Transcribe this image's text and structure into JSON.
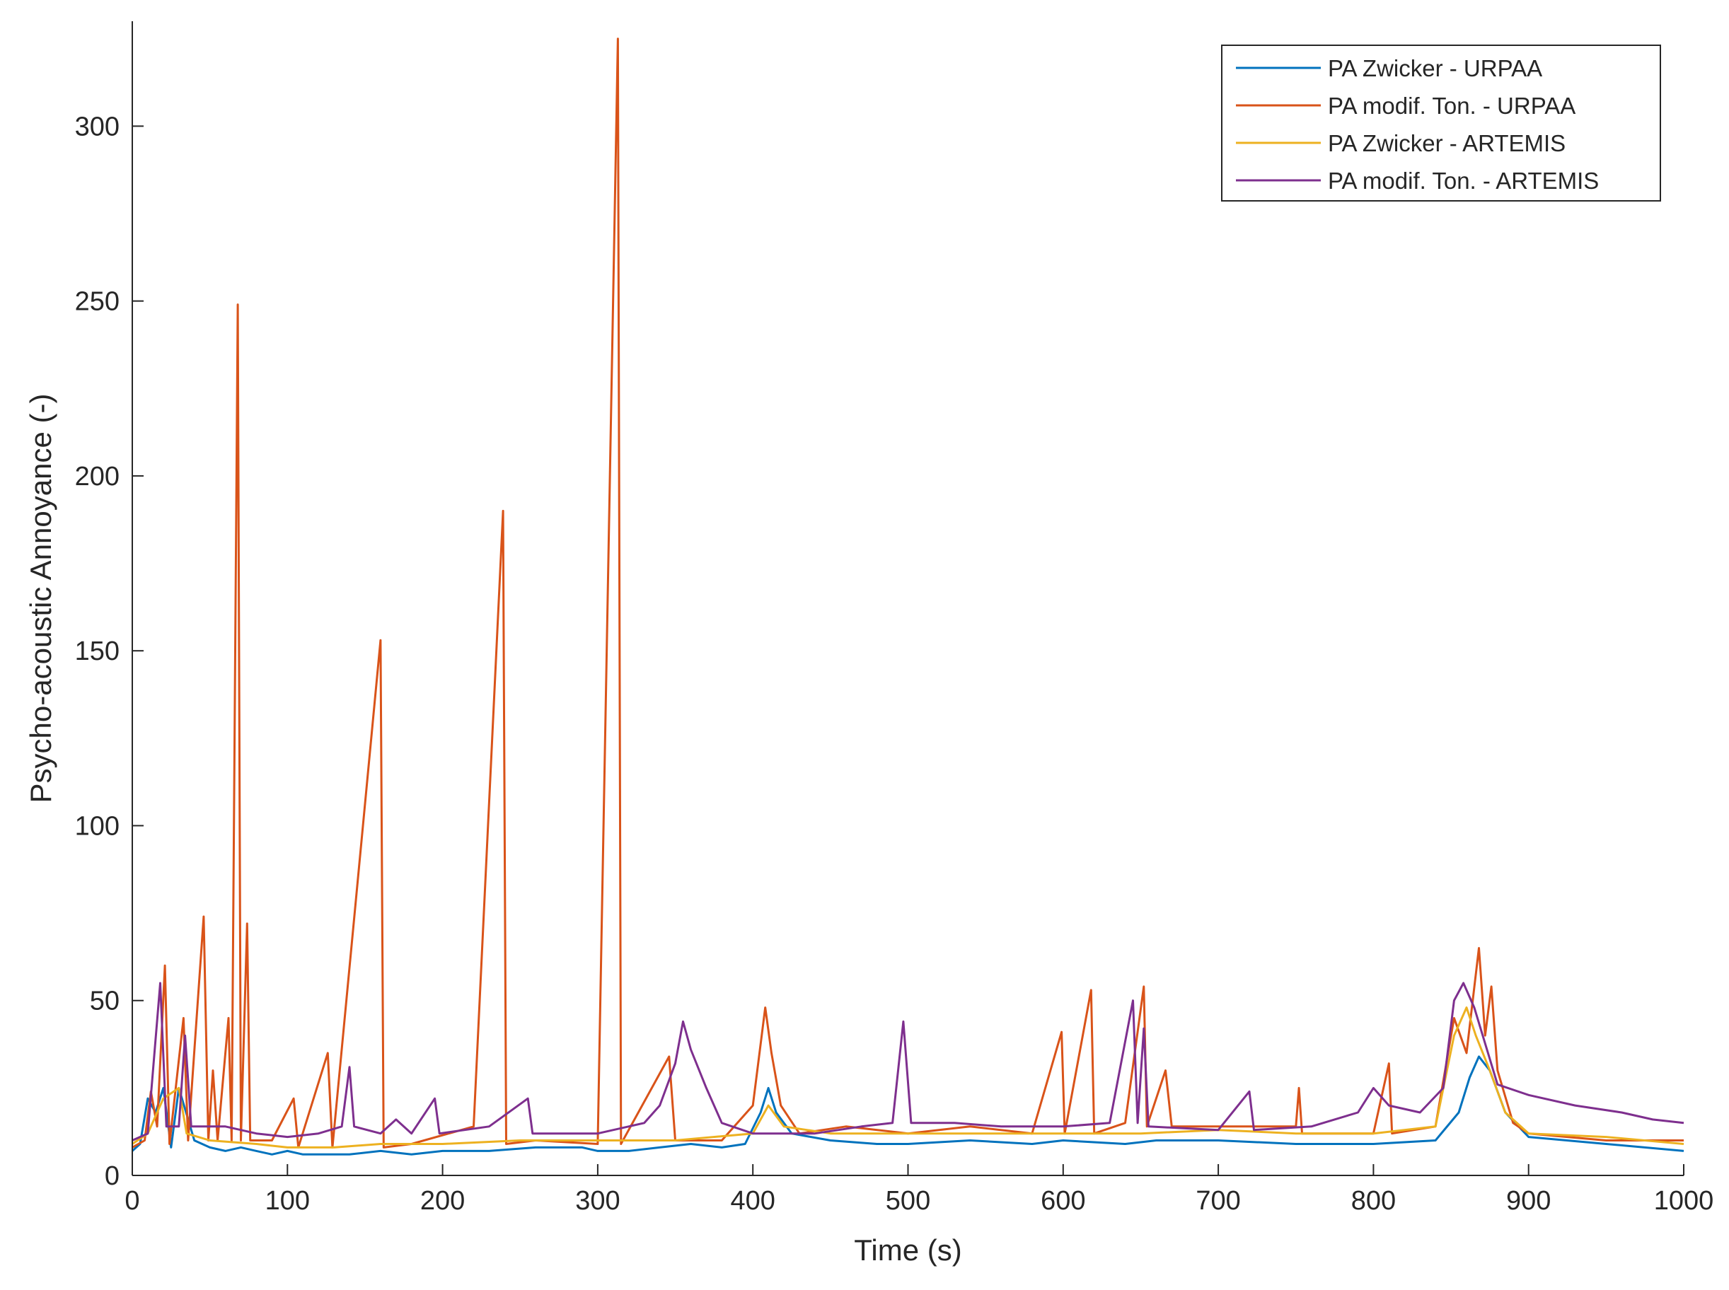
{
  "chart_data": {
    "type": "line",
    "title": "",
    "xlabel": "Time (s)",
    "ylabel": "Psycho-acoustic Annoyance (-)",
    "xlim": [
      0,
      1000
    ],
    "ylim": [
      0,
      330
    ],
    "xticks": [
      0,
      100,
      200,
      300,
      400,
      500,
      600,
      700,
      800,
      900,
      1000
    ],
    "yticks": [
      0,
      50,
      100,
      150,
      200,
      250,
      300
    ],
    "grid": false,
    "legend_position": "top-right",
    "series": [
      {
        "name": "PA Zwicker - URPAA",
        "color": "#0072BD",
        "points": [
          [
            0,
            7
          ],
          [
            5,
            9
          ],
          [
            10,
            22
          ],
          [
            15,
            18
          ],
          [
            20,
            25
          ],
          [
            25,
            8
          ],
          [
            30,
            25
          ],
          [
            40,
            10
          ],
          [
            50,
            8
          ],
          [
            60,
            7
          ],
          [
            70,
            8
          ],
          [
            80,
            7
          ],
          [
            90,
            6
          ],
          [
            100,
            7
          ],
          [
            110,
            6
          ],
          [
            125,
            6
          ],
          [
            140,
            6
          ],
          [
            160,
            7
          ],
          [
            180,
            6
          ],
          [
            200,
            7
          ],
          [
            230,
            7
          ],
          [
            260,
            8
          ],
          [
            290,
            8
          ],
          [
            300,
            7
          ],
          [
            320,
            7
          ],
          [
            340,
            8
          ],
          [
            360,
            9
          ],
          [
            380,
            8
          ],
          [
            395,
            9
          ],
          [
            405,
            18
          ],
          [
            410,
            25
          ],
          [
            415,
            18
          ],
          [
            425,
            12
          ],
          [
            450,
            10
          ],
          [
            480,
            9
          ],
          [
            500,
            9
          ],
          [
            540,
            10
          ],
          [
            580,
            9
          ],
          [
            600,
            10
          ],
          [
            640,
            9
          ],
          [
            660,
            10
          ],
          [
            700,
            10
          ],
          [
            750,
            9
          ],
          [
            800,
            9
          ],
          [
            840,
            10
          ],
          [
            855,
            18
          ],
          [
            862,
            28
          ],
          [
            868,
            34
          ],
          [
            875,
            30
          ],
          [
            885,
            18
          ],
          [
            900,
            11
          ],
          [
            950,
            9
          ],
          [
            1000,
            7
          ]
        ]
      },
      {
        "name": "PA modif. Ton. - URPAA",
        "color": "#D95319",
        "points": [
          [
            0,
            8
          ],
          [
            8,
            10
          ],
          [
            12,
            24
          ],
          [
            16,
            14
          ],
          [
            21,
            60
          ],
          [
            24,
            9
          ],
          [
            33,
            45
          ],
          [
            36,
            10
          ],
          [
            46,
            74
          ],
          [
            49,
            10
          ],
          [
            52,
            30
          ],
          [
            55,
            10
          ],
          [
            62,
            45
          ],
          [
            64,
            10
          ],
          [
            68,
            249
          ],
          [
            70,
            10
          ],
          [
            74,
            72
          ],
          [
            76,
            10
          ],
          [
            90,
            10
          ],
          [
            104,
            22
          ],
          [
            107,
            8
          ],
          [
            126,
            35
          ],
          [
            129,
            8
          ],
          [
            160,
            153
          ],
          [
            162,
            8
          ],
          [
            180,
            9
          ],
          [
            220,
            14
          ],
          [
            239,
            190
          ],
          [
            241,
            9
          ],
          [
            260,
            10
          ],
          [
            300,
            9
          ],
          [
            313,
            325
          ],
          [
            315,
            9
          ],
          [
            346,
            34
          ],
          [
            350,
            10
          ],
          [
            380,
            10
          ],
          [
            400,
            20
          ],
          [
            408,
            48
          ],
          [
            412,
            35
          ],
          [
            418,
            20
          ],
          [
            430,
            12
          ],
          [
            460,
            14
          ],
          [
            500,
            12
          ],
          [
            540,
            14
          ],
          [
            580,
            12
          ],
          [
            599,
            41
          ],
          [
            601,
            12
          ],
          [
            618,
            53
          ],
          [
            620,
            12
          ],
          [
            640,
            15
          ],
          [
            652,
            54
          ],
          [
            654,
            14
          ],
          [
            666,
            30
          ],
          [
            670,
            14
          ],
          [
            700,
            14
          ],
          [
            750,
            14
          ],
          [
            752,
            25
          ],
          [
            754,
            12
          ],
          [
            800,
            12
          ],
          [
            810,
            32
          ],
          [
            812,
            12
          ],
          [
            840,
            14
          ],
          [
            852,
            45
          ],
          [
            860,
            35
          ],
          [
            868,
            65
          ],
          [
            872,
            40
          ],
          [
            876,
            54
          ],
          [
            880,
            30
          ],
          [
            890,
            15
          ],
          [
            900,
            12
          ],
          [
            950,
            10
          ],
          [
            1000,
            10
          ]
        ]
      },
      {
        "name": "PA Zwicker - ARTEMIS",
        "color": "#EDB120",
        "points": [
          [
            0,
            9
          ],
          [
            10,
            12
          ],
          [
            20,
            22
          ],
          [
            30,
            25
          ],
          [
            35,
            12
          ],
          [
            50,
            10
          ],
          [
            80,
            9
          ],
          [
            100,
            8
          ],
          [
            130,
            8
          ],
          [
            160,
            9
          ],
          [
            200,
            9
          ],
          [
            250,
            10
          ],
          [
            300,
            10
          ],
          [
            350,
            10
          ],
          [
            400,
            12
          ],
          [
            410,
            20
          ],
          [
            420,
            14
          ],
          [
            450,
            12
          ],
          [
            500,
            12
          ],
          [
            550,
            12
          ],
          [
            600,
            12
          ],
          [
            650,
            12
          ],
          [
            700,
            13
          ],
          [
            750,
            12
          ],
          [
            800,
            12
          ],
          [
            840,
            14
          ],
          [
            852,
            40
          ],
          [
            860,
            48
          ],
          [
            866,
            40
          ],
          [
            875,
            30
          ],
          [
            885,
            18
          ],
          [
            900,
            12
          ],
          [
            950,
            11
          ],
          [
            1000,
            9
          ]
        ]
      },
      {
        "name": "PA modif. Ton. - ARTEMIS",
        "color": "#7E2F8E",
        "points": [
          [
            0,
            10
          ],
          [
            10,
            12
          ],
          [
            18,
            55
          ],
          [
            22,
            14
          ],
          [
            30,
            14
          ],
          [
            34,
            40
          ],
          [
            38,
            14
          ],
          [
            60,
            14
          ],
          [
            80,
            12
          ],
          [
            100,
            11
          ],
          [
            120,
            12
          ],
          [
            135,
            14
          ],
          [
            140,
            31
          ],
          [
            143,
            14
          ],
          [
            160,
            12
          ],
          [
            170,
            16
          ],
          [
            180,
            12
          ],
          [
            195,
            22
          ],
          [
            198,
            12
          ],
          [
            230,
            14
          ],
          [
            255,
            22
          ],
          [
            258,
            12
          ],
          [
            300,
            12
          ],
          [
            330,
            15
          ],
          [
            340,
            20
          ],
          [
            350,
            32
          ],
          [
            355,
            44
          ],
          [
            360,
            36
          ],
          [
            370,
            25
          ],
          [
            380,
            15
          ],
          [
            400,
            12
          ],
          [
            440,
            12
          ],
          [
            470,
            14
          ],
          [
            490,
            15
          ],
          [
            497,
            44
          ],
          [
            502,
            15
          ],
          [
            530,
            15
          ],
          [
            560,
            14
          ],
          [
            600,
            14
          ],
          [
            630,
            15
          ],
          [
            645,
            50
          ],
          [
            648,
            15
          ],
          [
            652,
            42
          ],
          [
            655,
            14
          ],
          [
            700,
            13
          ],
          [
            720,
            24
          ],
          [
            723,
            13
          ],
          [
            760,
            14
          ],
          [
            790,
            18
          ],
          [
            800,
            25
          ],
          [
            810,
            20
          ],
          [
            830,
            18
          ],
          [
            845,
            25
          ],
          [
            852,
            50
          ],
          [
            858,
            55
          ],
          [
            865,
            48
          ],
          [
            880,
            26
          ],
          [
            900,
            23
          ],
          [
            930,
            20
          ],
          [
            960,
            18
          ],
          [
            980,
            16
          ],
          [
            1000,
            15
          ]
        ]
      }
    ]
  }
}
